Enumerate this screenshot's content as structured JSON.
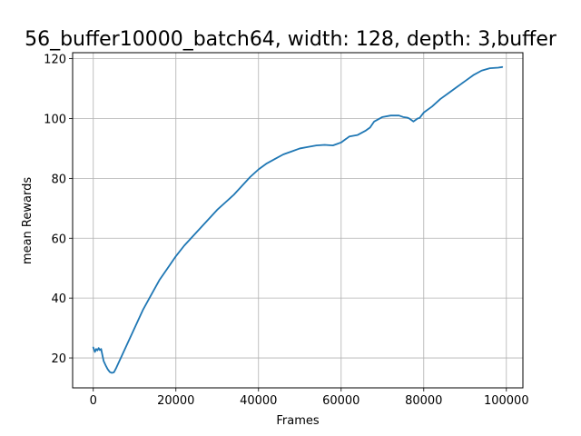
{
  "chart_data": {
    "type": "line",
    "title": "56_buffer10000_batch64, width: 128, depth: 3,buffer",
    "xlabel": "Frames",
    "ylabel": "mean Rewards",
    "xlim": [
      -5000,
      104000
    ],
    "ylim": [
      10,
      122
    ],
    "x_ticks": [
      0,
      20000,
      40000,
      60000,
      80000,
      100000
    ],
    "x_tick_labels": [
      "0",
      "20000",
      "40000",
      "60000",
      "80000",
      "100000"
    ],
    "y_ticks": [
      20,
      40,
      60,
      80,
      100,
      120
    ],
    "y_tick_labels": [
      "20",
      "40",
      "60",
      "80",
      "100",
      "120"
    ],
    "grid": true,
    "series": [
      {
        "color": "#1f77b4",
        "x": [
          0,
          400,
          700,
          1000,
          1300,
          1600,
          1900,
          2200,
          2500,
          3000,
          3500,
          4000,
          4500,
          5000,
          5500,
          6000,
          7000,
          8000,
          10000,
          12000,
          14000,
          16000,
          18000,
          20000,
          22000,
          24000,
          26000,
          28000,
          30000,
          32000,
          34000,
          36000,
          38000,
          40000,
          42000,
          44000,
          46000,
          48000,
          50000,
          52000,
          54000,
          56000,
          58000,
          59000,
          60000,
          61000,
          62000,
          64000,
          66000,
          67000,
          68000,
          70000,
          72000,
          74000,
          75000,
          76000,
          76500,
          77000,
          77500,
          78000,
          78500,
          79000,
          80000,
          82000,
          84000,
          86000,
          88000,
          90000,
          92000,
          94000,
          96000,
          98000,
          99000
        ],
        "y": [
          23.5,
          22.0,
          23.0,
          22.5,
          23.3,
          22.6,
          23.0,
          21.0,
          19.0,
          17.5,
          16.2,
          15.3,
          15.0,
          15.2,
          16.5,
          18.0,
          21.0,
          24.0,
          30.0,
          36.0,
          41.0,
          46.0,
          50.0,
          54.0,
          57.5,
          60.5,
          63.5,
          66.5,
          69.5,
          72.0,
          74.5,
          77.5,
          80.5,
          83.0,
          85.0,
          86.5,
          88.0,
          89.0,
          90.0,
          90.5,
          91.0,
          91.2,
          91.0,
          91.5,
          92.0,
          93.0,
          94.0,
          94.5,
          96.0,
          97.0,
          99.0,
          100.5,
          101.0,
          101.0,
          100.5,
          100.3,
          100.0,
          99.5,
          99.0,
          99.5,
          100.0,
          100.2,
          102.0,
          104.0,
          106.5,
          108.5,
          110.5,
          112.5,
          114.5,
          116.0,
          116.8,
          117.0,
          117.2
        ]
      }
    ]
  }
}
